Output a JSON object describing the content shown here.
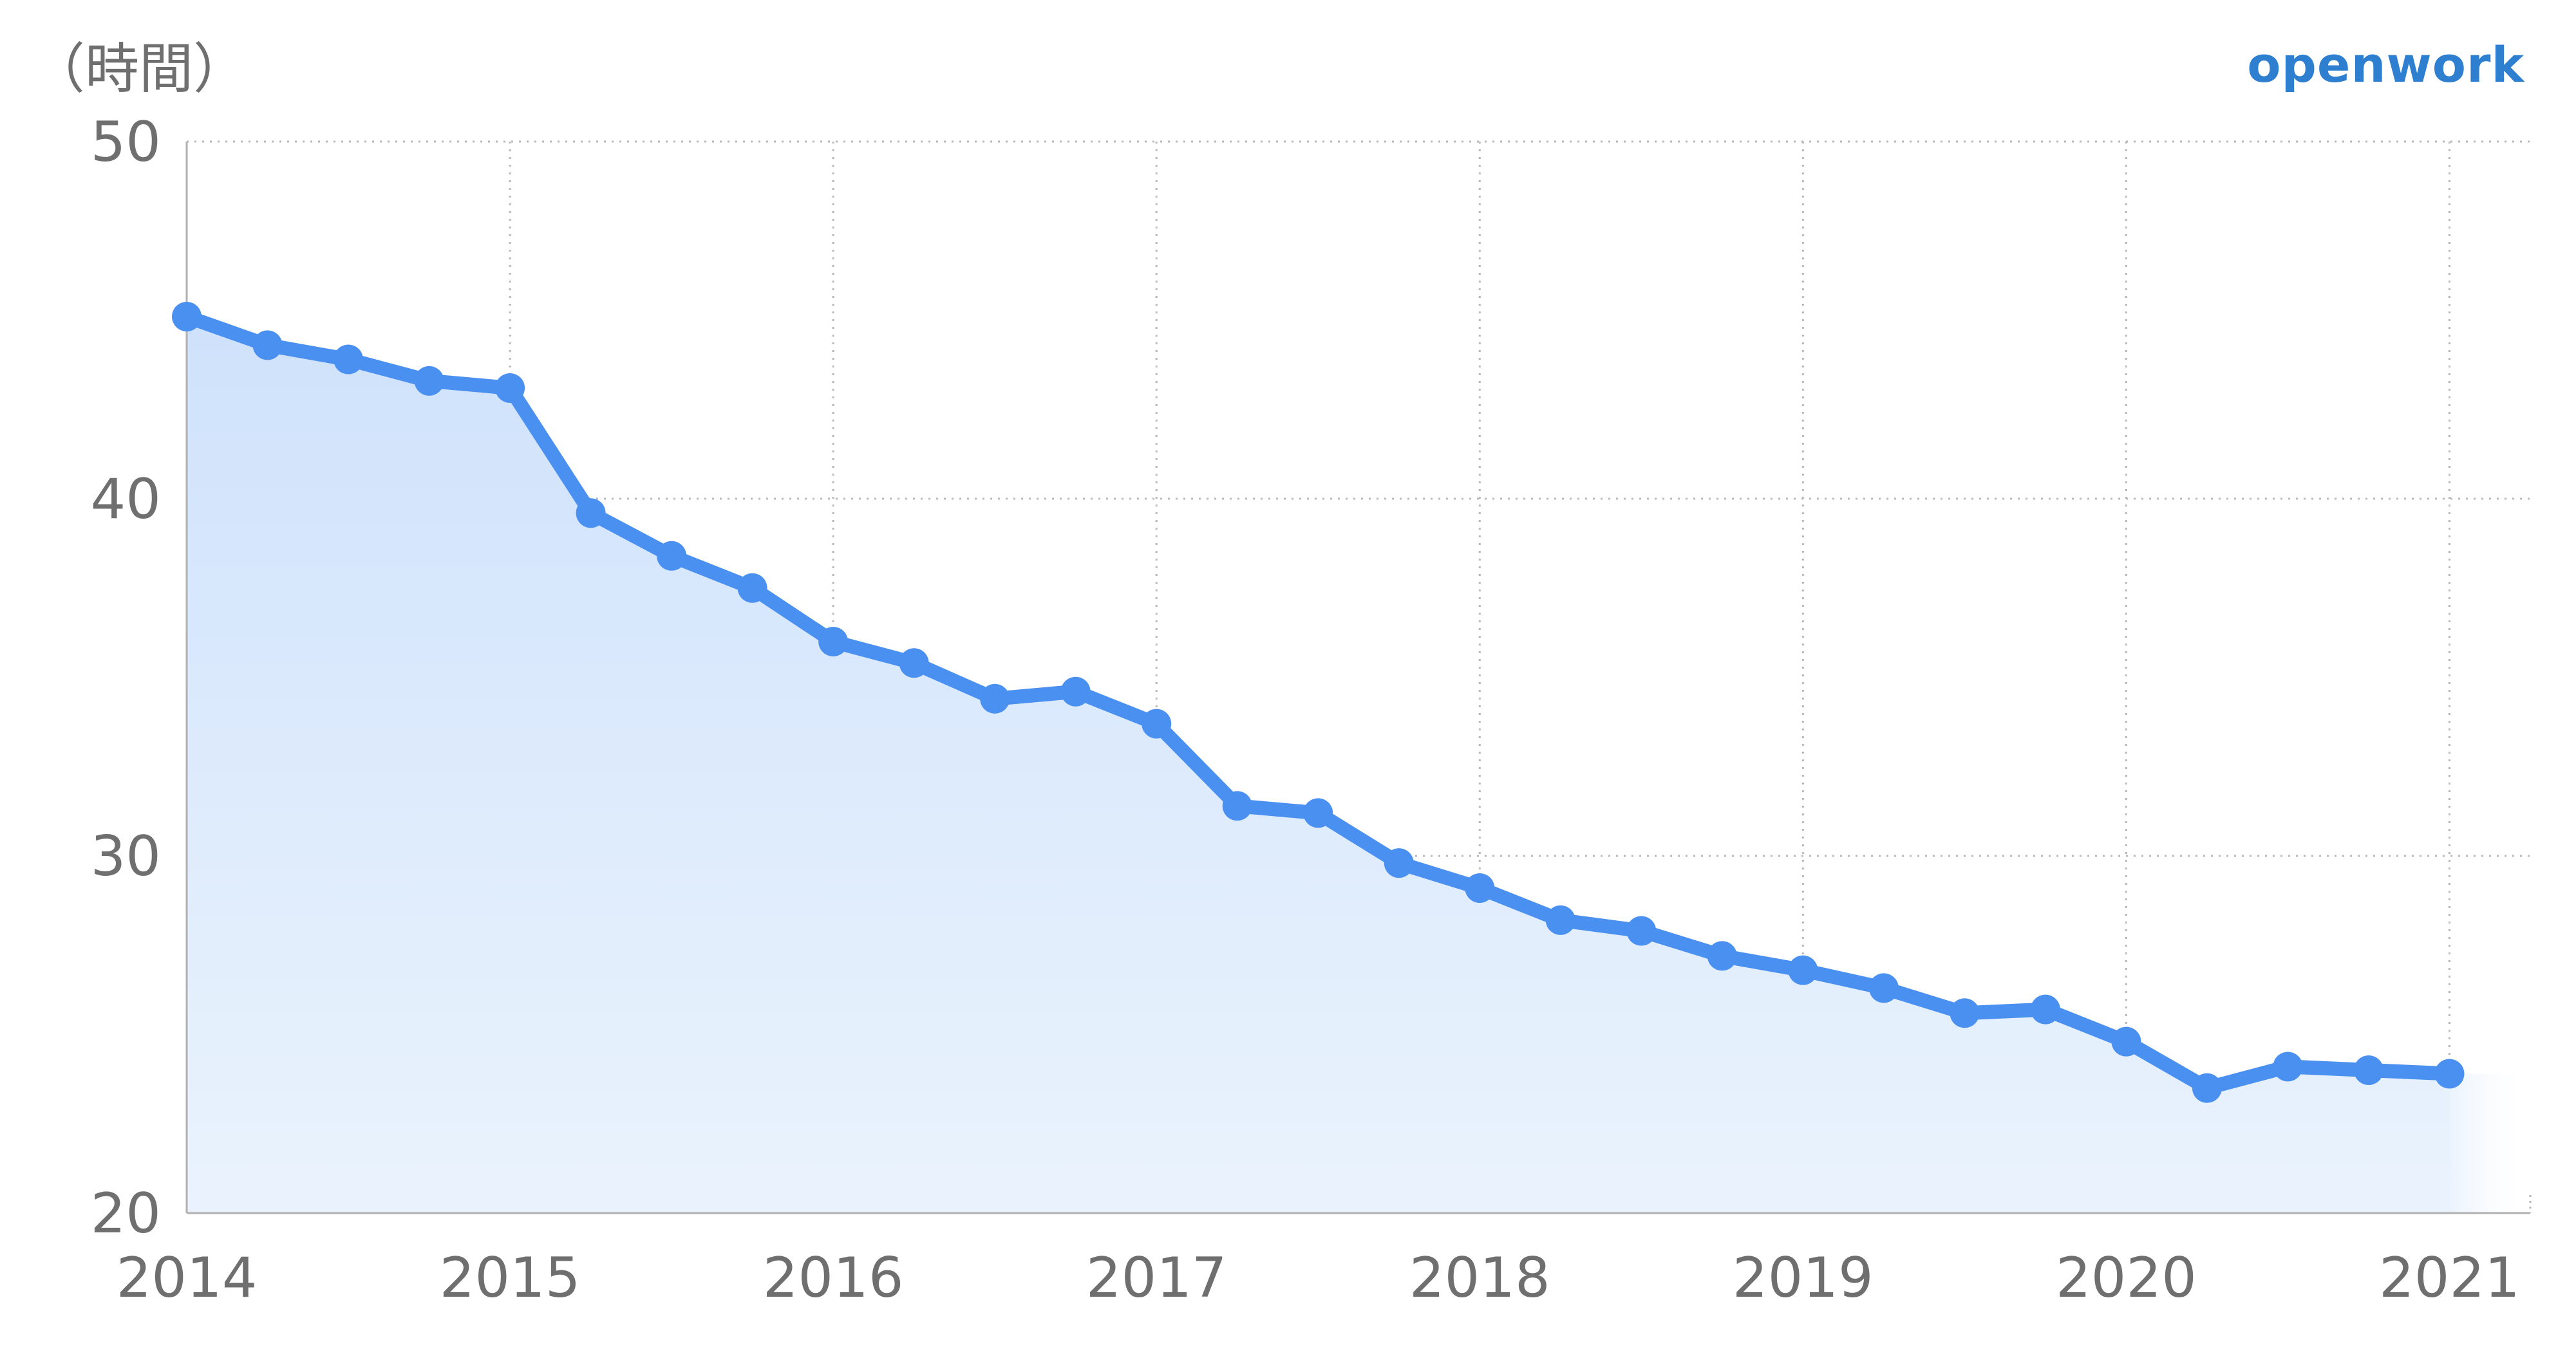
{
  "unit_label": "（時間）",
  "brand": "openwork",
  "colors": {
    "line": "#4a90f0",
    "fill_top": "#cfe2fb",
    "fill_bottom": "#eaf3fd",
    "grid": "#b8b8b8",
    "axis": "#b0b0b0",
    "text": "#6f6f6f"
  },
  "chart_data": {
    "type": "area",
    "title": "",
    "xlabel": "",
    "ylabel": "（時間）",
    "ylim": [
      20,
      50
    ],
    "xlim": [
      2014,
      2021.25
    ],
    "yticks": [
      "20",
      "30",
      "40",
      "50"
    ],
    "xticks": [
      "2014",
      "2015",
      "2016",
      "2017",
      "2018",
      "2019",
      "2020",
      "2021"
    ],
    "grid": true,
    "x": [
      2014,
      2014.25,
      2014.5,
      2014.75,
      2015,
      2015.25,
      2015.5,
      2015.75,
      2016,
      2016.25,
      2016.5,
      2016.75,
      2017,
      2017.25,
      2017.5,
      2017.75,
      2018,
      2018.25,
      2018.5,
      2018.75,
      2019,
      2019.25,
      2019.5,
      2019.75,
      2020,
      2020.25,
      2020.5,
      2020.75,
      2021
    ],
    "values": [
      45.1,
      44.3,
      43.9,
      43.3,
      43.1,
      39.6,
      38.4,
      37.5,
      36.0,
      35.4,
      34.4,
      34.6,
      33.7,
      31.4,
      31.2,
      29.8,
      29.1,
      28.2,
      27.9,
      27.2,
      26.8,
      26.3,
      25.6,
      25.7,
      24.8,
      23.5,
      24.1,
      24.0,
      23.9
    ]
  }
}
